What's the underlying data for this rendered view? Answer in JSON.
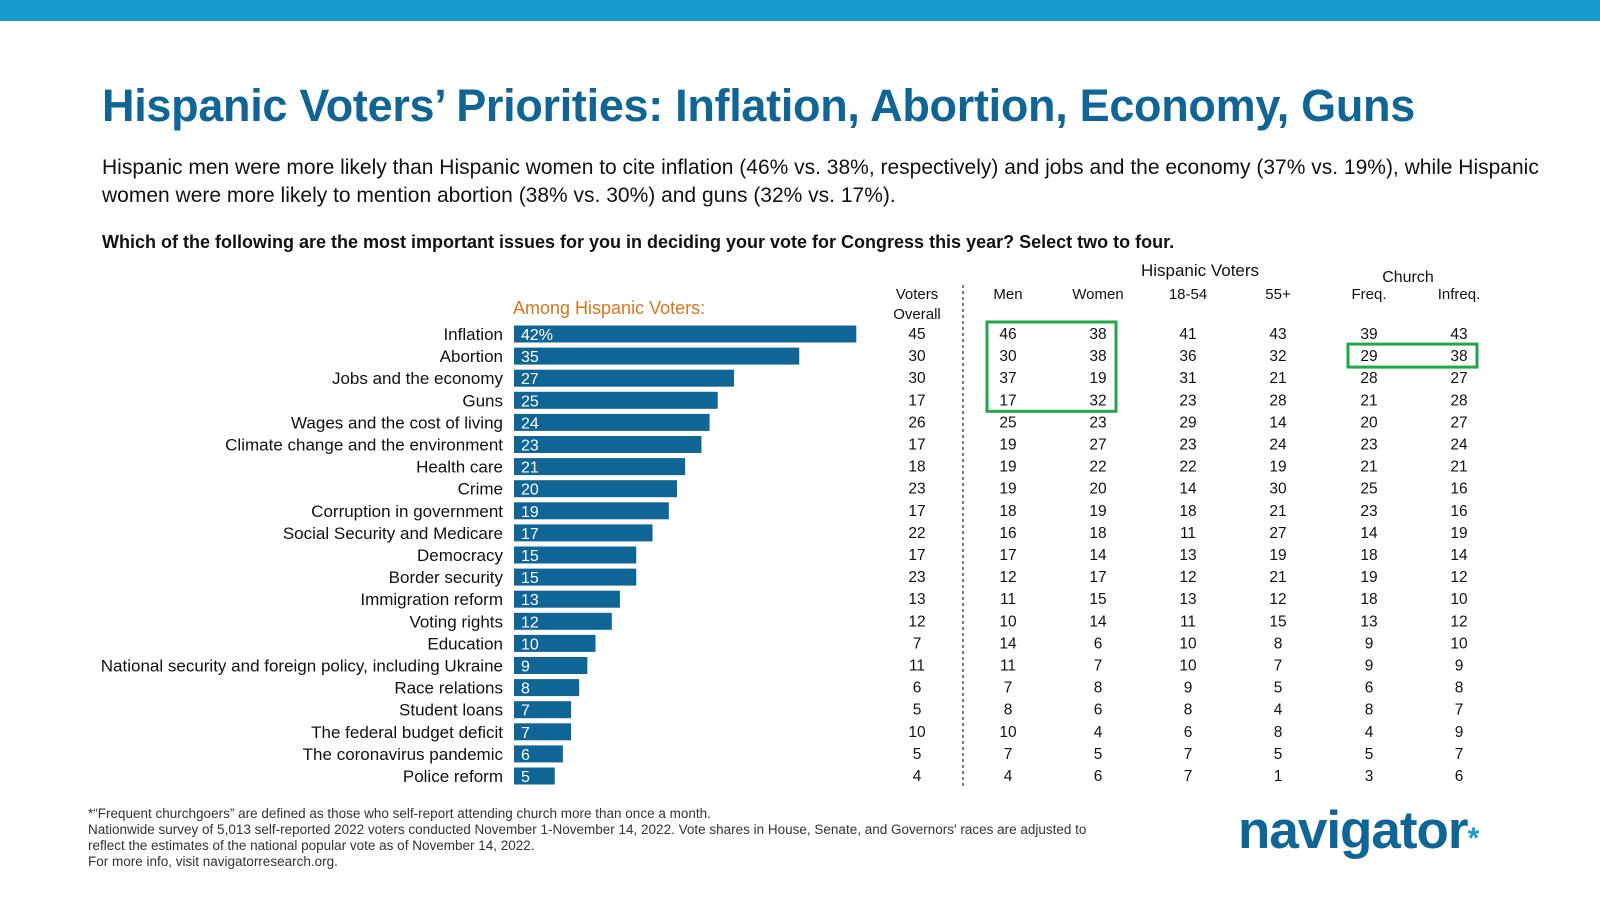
{
  "colors": {
    "bar": "#0f6696",
    "accent": "#199bd0",
    "highlight": "#22a64a",
    "among": "#d9751e"
  },
  "title": "Hispanic Voters’ Priorities: Inflation, Abortion, Economy, Guns",
  "subtitle": "Hispanic men were more likely than Hispanic women to cite inflation (46% vs. 38%, respectively) and jobs and the economy (37% vs. 19%), while Hispanic women were more likely to mention abortion (38% vs. 30%) and guns (32% vs. 17%).",
  "question": "Which of the following are the most important issues for you in deciding your vote for Congress this year? Select two to four.",
  "footnotes": [
    "*“Frequent churchgoers” are defined as those who self-report attending church more than once a month.",
    "Nationwide survey of 5,013 self-reported 2022 voters conducted November 1-November 14, 2022. Vote shares in House, Senate, and Governors' races are adjusted to",
    "reflect the estimates of the national popular vote as of November 14, 2022.",
    "For more info, visit navigatorresearch.org."
  ],
  "logo": {
    "text": "navigator",
    "mark": "*"
  },
  "chart_data": {
    "type": "bar",
    "orientation": "horizontal",
    "bar_label": "Among Hispanic Voters:",
    "first_value_suffix": "%",
    "categories": [
      "Inflation",
      "Abortion",
      "Jobs and the economy",
      "Guns",
      "Wages and the cost of living",
      "Climate change and the environment",
      "Health care",
      "Crime",
      "Corruption in government",
      "Social Security and Medicare",
      "Democracy",
      "Border security",
      "Immigration reform",
      "Voting rights",
      "Education",
      "National security and foreign policy, including Ukraine",
      "Race relations",
      "Student loans",
      "The federal budget deficit",
      "The coronavirus pandemic",
      "Police reform"
    ],
    "values": [
      42,
      35,
      27,
      25,
      24,
      23,
      21,
      20,
      19,
      17,
      15,
      15,
      13,
      12,
      10,
      9,
      8,
      7,
      7,
      6,
      5
    ],
    "table": {
      "group_headers": {
        "hispanic": "Hispanic Voters",
        "church": "Church"
      },
      "columns": [
        {
          "header": [
            "Voters",
            "Overall"
          ],
          "values": [
            45,
            30,
            30,
            17,
            26,
            17,
            18,
            23,
            17,
            22,
            17,
            23,
            13,
            12,
            7,
            11,
            6,
            5,
            10,
            5,
            4
          ]
        },
        {
          "header": [
            "Men"
          ],
          "values": [
            46,
            30,
            37,
            17,
            25,
            19,
            19,
            19,
            18,
            16,
            17,
            12,
            11,
            10,
            14,
            11,
            7,
            8,
            10,
            7,
            4
          ]
        },
        {
          "header": [
            "Women"
          ],
          "values": [
            38,
            38,
            19,
            32,
            23,
            27,
            22,
            20,
            19,
            18,
            14,
            17,
            15,
            14,
            6,
            7,
            8,
            6,
            4,
            5,
            6
          ]
        },
        {
          "header": [
            "18-54"
          ],
          "values": [
            41,
            36,
            31,
            23,
            29,
            23,
            22,
            14,
            18,
            11,
            13,
            12,
            13,
            11,
            10,
            10,
            9,
            8,
            6,
            7,
            7
          ]
        },
        {
          "header": [
            "55+"
          ],
          "values": [
            43,
            32,
            21,
            28,
            14,
            24,
            19,
            30,
            21,
            27,
            19,
            21,
            12,
            15,
            8,
            7,
            5,
            4,
            8,
            5,
            1
          ]
        },
        {
          "header": [
            "Freq."
          ],
          "values": [
            39,
            29,
            28,
            21,
            20,
            23,
            21,
            25,
            23,
            14,
            18,
            19,
            18,
            13,
            9,
            9,
            6,
            8,
            4,
            5,
            3
          ]
        },
        {
          "header": [
            "Infreq."
          ],
          "values": [
            43,
            38,
            27,
            28,
            27,
            24,
            21,
            16,
            16,
            19,
            14,
            12,
            10,
            12,
            10,
            9,
            8,
            7,
            9,
            7,
            6
          ]
        }
      ],
      "highlights": [
        {
          "columns": [
            1,
            2
          ],
          "rows": [
            0,
            3
          ]
        },
        {
          "columns": [
            5,
            6
          ],
          "rows": [
            1,
            1
          ]
        }
      ]
    }
  }
}
